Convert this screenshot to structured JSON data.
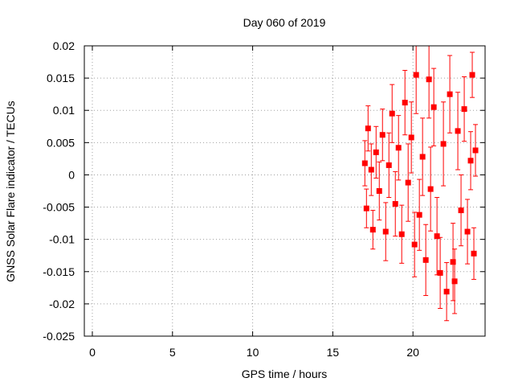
{
  "chart_data": {
    "type": "scatter",
    "title": "Day 060 of 2019",
    "xlabel": "GPS time / hours",
    "ylabel": "GNSS Solar Flare indicator / TECUs",
    "xlim": [
      -0.5,
      24.5
    ],
    "ylim": [
      -0.025,
      0.02
    ],
    "grid": true,
    "x_ticks": [
      0,
      5,
      10,
      15,
      20
    ],
    "x_tick_labels": [
      "0",
      "5",
      "10",
      "15",
      "20"
    ],
    "y_ticks": [
      -0.025,
      -0.02,
      -0.015,
      -0.01,
      -0.005,
      0,
      0.005,
      0.01,
      0.015,
      0.02
    ],
    "y_tick_labels": [
      "-0.025",
      "-0.02",
      "-0.015",
      "-0.01",
      "-0.005",
      "0",
      "0.005",
      "0.01",
      "0.015",
      "0.02"
    ],
    "series_color": "#ff0000",
    "marker": "square",
    "error_bars": true,
    "points": [
      {
        "x": 17.0,
        "y": 0.0018,
        "err": 0.0035
      },
      {
        "x": 17.1,
        "y": -0.0052,
        "err": 0.003
      },
      {
        "x": 17.2,
        "y": 0.0072,
        "err": 0.0035
      },
      {
        "x": 17.4,
        "y": 0.0008,
        "err": 0.004
      },
      {
        "x": 17.5,
        "y": -0.0085,
        "err": 0.003
      },
      {
        "x": 17.7,
        "y": 0.0035,
        "err": 0.004
      },
      {
        "x": 17.9,
        "y": -0.0025,
        "err": 0.0045
      },
      {
        "x": 18.1,
        "y": 0.0062,
        "err": 0.004
      },
      {
        "x": 18.3,
        "y": -0.0088,
        "err": 0.0045
      },
      {
        "x": 18.5,
        "y": 0.0015,
        "err": 0.005
      },
      {
        "x": 18.7,
        "y": 0.0095,
        "err": 0.0045
      },
      {
        "x": 18.9,
        "y": -0.0045,
        "err": 0.005
      },
      {
        "x": 19.1,
        "y": 0.0042,
        "err": 0.005
      },
      {
        "x": 19.3,
        "y": -0.0092,
        "err": 0.0045
      },
      {
        "x": 19.5,
        "y": 0.0112,
        "err": 0.005
      },
      {
        "x": 19.7,
        "y": -0.0012,
        "err": 0.006
      },
      {
        "x": 19.9,
        "y": 0.0058,
        "err": 0.0055
      },
      {
        "x": 20.1,
        "y": -0.0108,
        "err": 0.005
      },
      {
        "x": 20.2,
        "y": 0.0155,
        "err": 0.006
      },
      {
        "x": 20.4,
        "y": -0.0062,
        "err": 0.0055
      },
      {
        "x": 20.6,
        "y": 0.0028,
        "err": 0.006
      },
      {
        "x": 20.8,
        "y": -0.0132,
        "err": 0.0055
      },
      {
        "x": 21.0,
        "y": 0.0148,
        "err": 0.006
      },
      {
        "x": 21.1,
        "y": -0.0022,
        "err": 0.0065
      },
      {
        "x": 21.3,
        "y": 0.0105,
        "err": 0.006
      },
      {
        "x": 21.5,
        "y": -0.0095,
        "err": 0.006
      },
      {
        "x": 21.7,
        "y": -0.0152,
        "err": 0.0055
      },
      {
        "x": 21.9,
        "y": 0.0048,
        "err": 0.0065
      },
      {
        "x": 22.1,
        "y": -0.0181,
        "err": 0.0045
      },
      {
        "x": 22.3,
        "y": 0.0125,
        "err": 0.006
      },
      {
        "x": 22.5,
        "y": -0.0135,
        "err": 0.006
      },
      {
        "x": 22.6,
        "y": -0.0165,
        "err": 0.005
      },
      {
        "x": 22.8,
        "y": 0.0068,
        "err": 0.006
      },
      {
        "x": 23.0,
        "y": -0.0055,
        "err": 0.0055
      },
      {
        "x": 23.2,
        "y": 0.0102,
        "err": 0.005
      },
      {
        "x": 23.4,
        "y": -0.0088,
        "err": 0.005
      },
      {
        "x": 23.6,
        "y": 0.0022,
        "err": 0.0045
      },
      {
        "x": 23.7,
        "y": 0.0155,
        "err": 0.0035
      },
      {
        "x": 23.8,
        "y": -0.0122,
        "err": 0.004
      },
      {
        "x": 23.9,
        "y": 0.0038,
        "err": 0.004
      }
    ]
  }
}
